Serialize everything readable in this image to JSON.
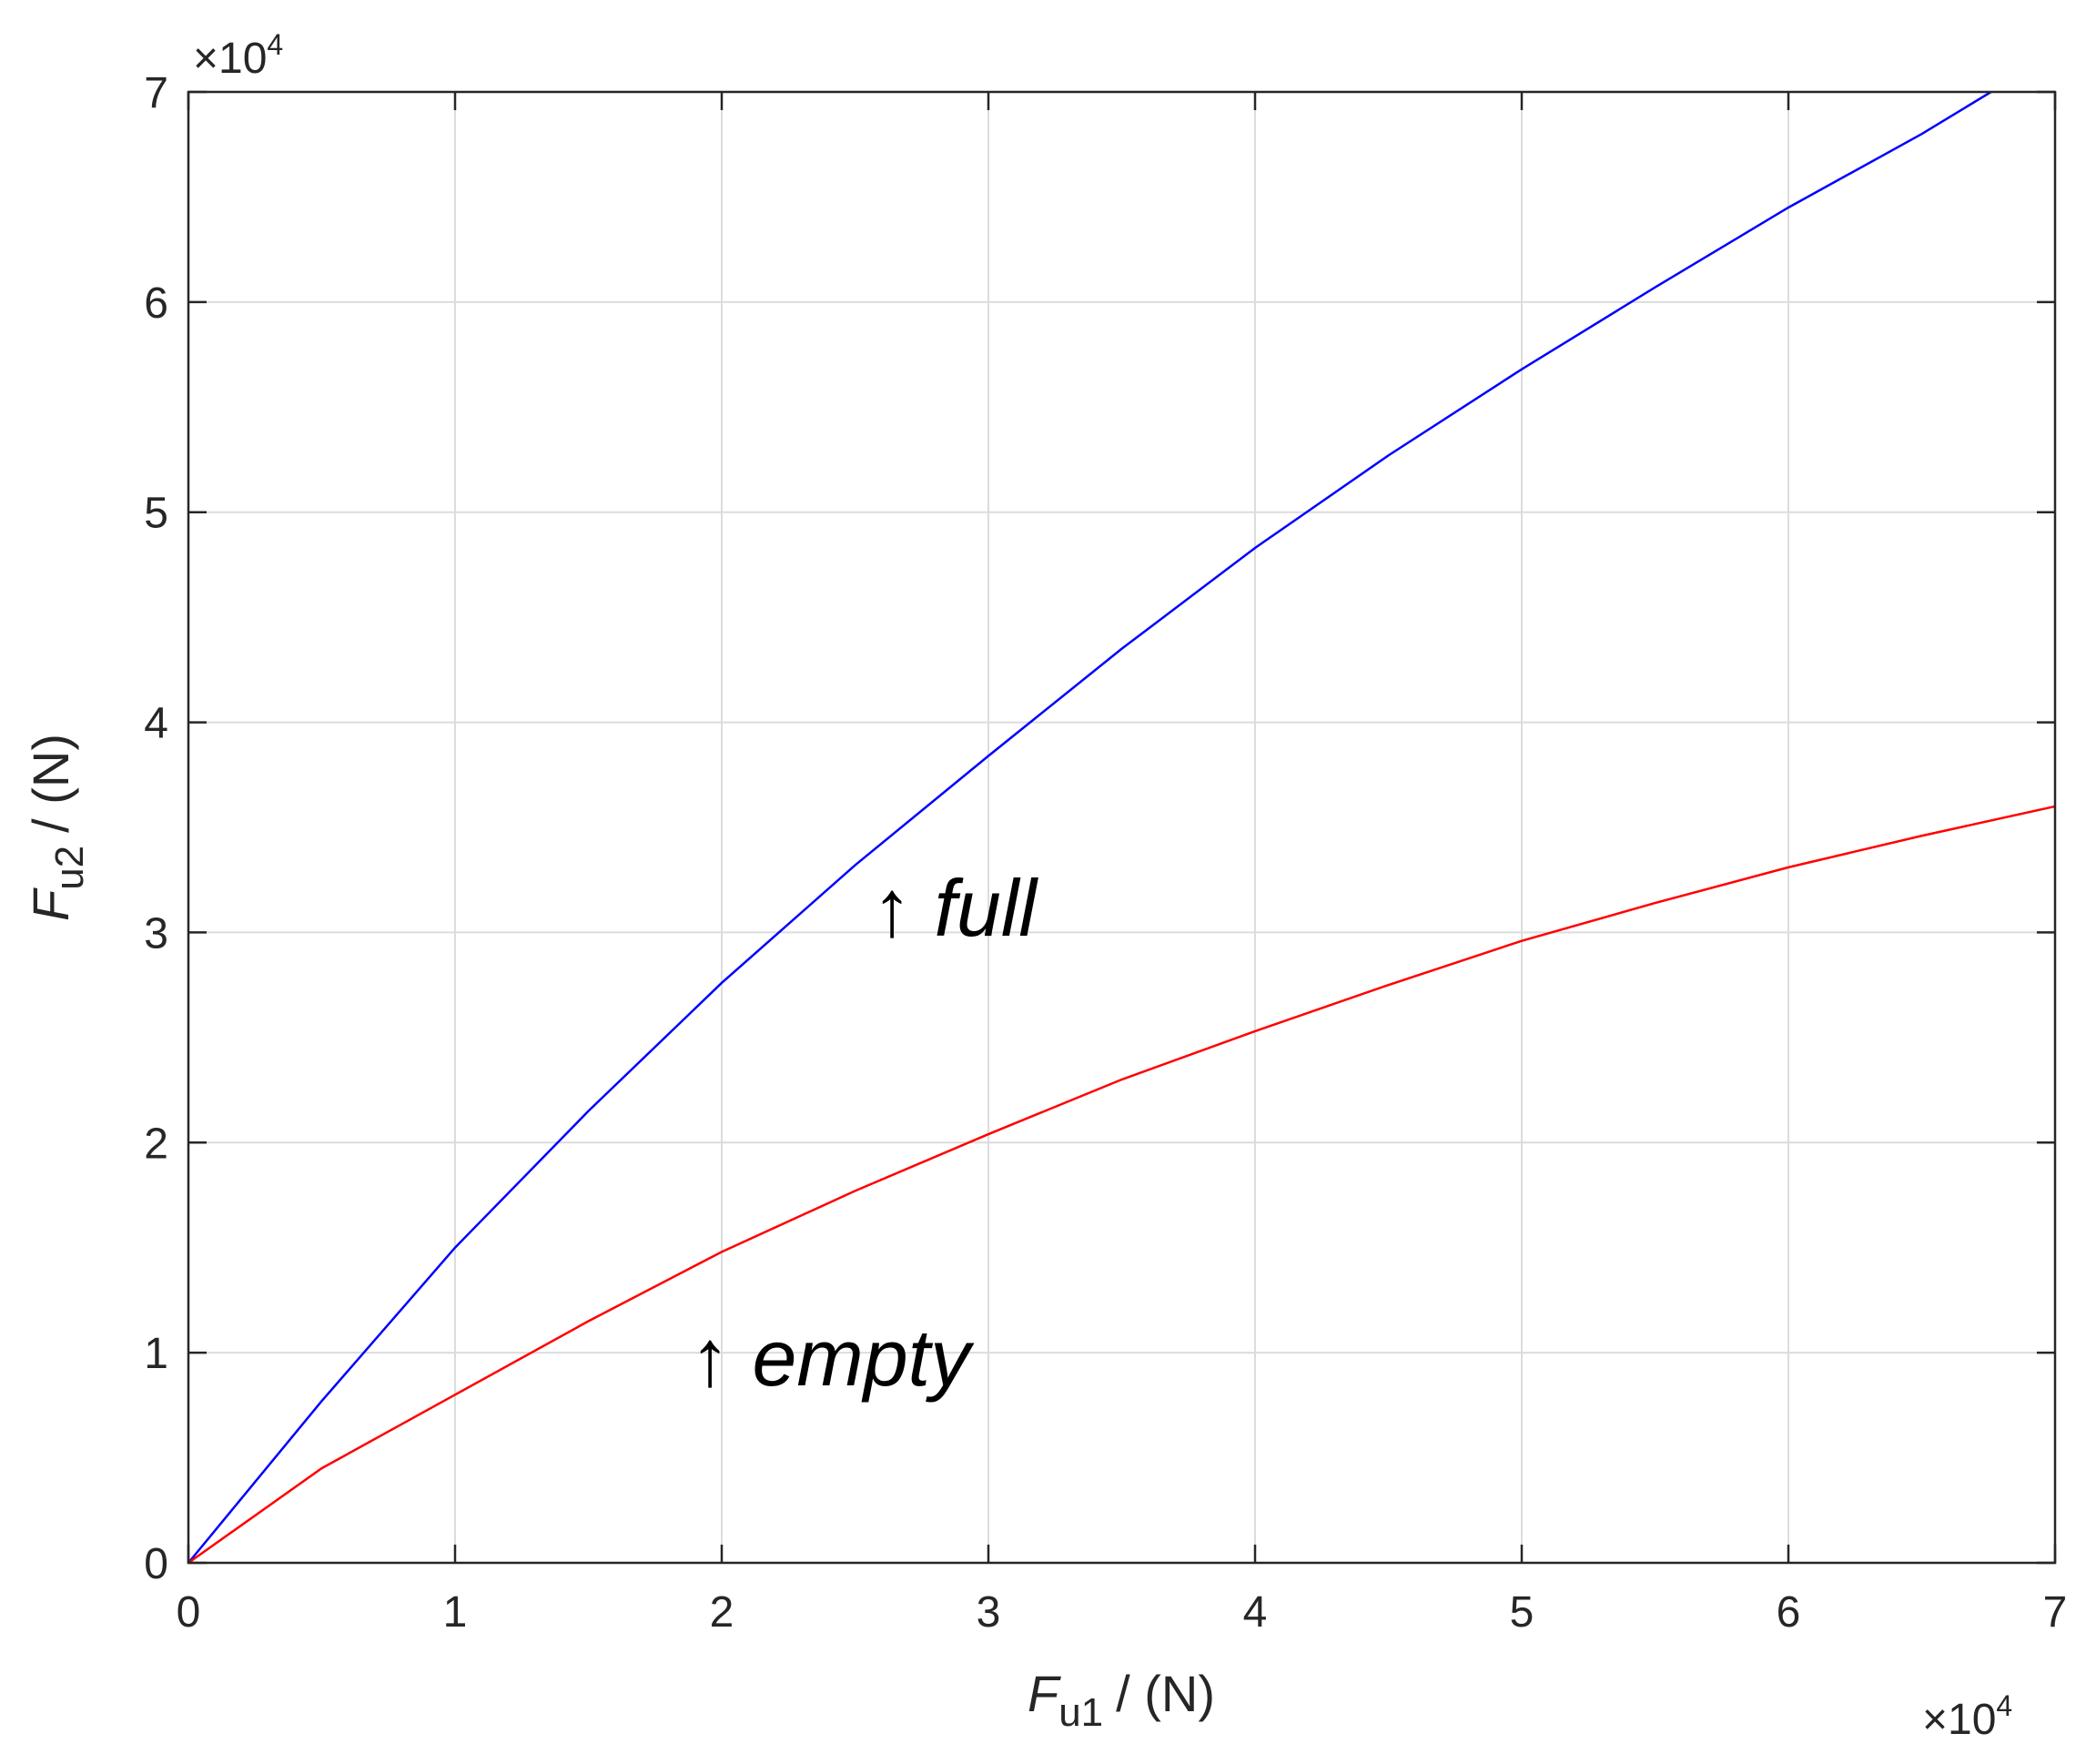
{
  "chart_data": {
    "type": "line",
    "x_label": {
      "symbol": "F",
      "subscript": "u1",
      "unit": "/ (N)"
    },
    "y_label": {
      "symbol": "F",
      "subscript": "u2",
      "unit": "/ (N)"
    },
    "x_multiplier": {
      "base": "×10",
      "exponent": "4"
    },
    "y_multiplier": {
      "base": "×10",
      "exponent": "4"
    },
    "annotations": [
      "↑ full",
      "↑ empty"
    ],
    "series": [
      {
        "color": "#0000ff",
        "x": [
          0,
          0.5,
          1,
          1.5,
          2,
          2.5,
          3,
          3.5,
          4,
          4.5,
          5,
          5.5,
          6,
          6.5,
          6.76
        ],
        "values": [
          0,
          0.77,
          1.5,
          2.15,
          2.76,
          3.32,
          3.84,
          4.35,
          4.83,
          5.27,
          5.68,
          6.07,
          6.45,
          6.8,
          7.0
        ]
      },
      {
        "color": "#ff0000",
        "x": [
          0,
          0.5,
          1,
          1.5,
          2,
          2.5,
          3,
          3.5,
          4,
          4.5,
          5,
          5.5,
          6,
          6.5,
          7
        ],
        "values": [
          0,
          0.45,
          0.8,
          1.15,
          1.48,
          1.77,
          2.04,
          2.3,
          2.53,
          2.75,
          2.96,
          3.14,
          3.31,
          3.46,
          3.6
        ]
      }
    ],
    "xlim": [
      0,
      7
    ],
    "ylim": [
      0,
      7
    ],
    "xticks": [
      0,
      1,
      2,
      3,
      4,
      5,
      6,
      7
    ],
    "yticks": [
      0,
      1,
      2,
      3,
      4,
      5,
      6,
      7
    ],
    "grid": true
  }
}
